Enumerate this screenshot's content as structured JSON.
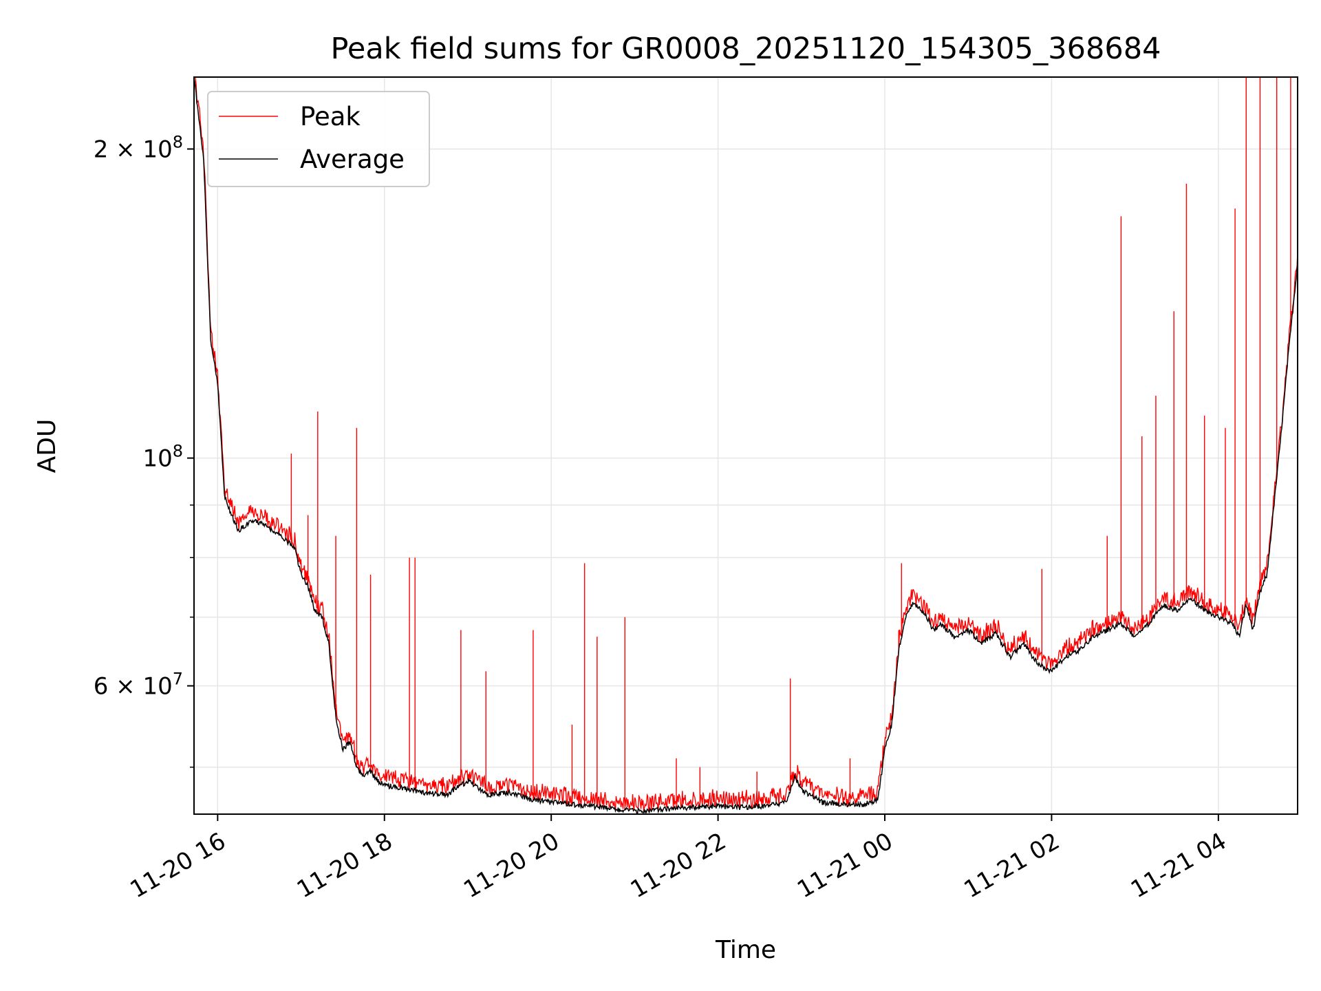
{
  "chart_data": {
    "type": "line",
    "title": "Peak field sums for GR0008_20251120_154305_368684",
    "xlabel": "Time",
    "ylabel": "ADU",
    "yscale": "log",
    "ylim": [
      45000000,
      235000000
    ],
    "xlim": [
      "2025-11-20 15:43",
      "2025-11-21 04:57"
    ],
    "grid": true,
    "legend_position": "top-left",
    "x_ticks": [
      {
        "t": "2025-11-20 16:00",
        "label": "11-20 16"
      },
      {
        "t": "2025-11-20 18:00",
        "label": "11-20 18"
      },
      {
        "t": "2025-11-20 20:00",
        "label": "11-20 20"
      },
      {
        "t": "2025-11-20 22:00",
        "label": "11-20 22"
      },
      {
        "t": "2025-11-21 00:00",
        "label": "11-21 00"
      },
      {
        "t": "2025-11-21 02:00",
        "label": "11-21 02"
      },
      {
        "t": "2025-11-21 04:00",
        "label": "11-21 04"
      }
    ],
    "y_major_ticks": [
      {
        "v": 200000000,
        "base": "2 × 10",
        "exp": "8"
      },
      {
        "v": 100000000,
        "base": "10",
        "exp": "8"
      },
      {
        "v": 60000000,
        "base": "6 × 10",
        "exp": "7"
      }
    ],
    "y_minor_ticks": [
      50000000,
      70000000,
      80000000,
      90000000
    ],
    "series": [
      {
        "name": "Average",
        "color": "#000000",
        "x": [
          "2025-11-20 15:43",
          "2025-11-20 15:50",
          "2025-11-20 15:55",
          "2025-11-20 16:00",
          "2025-11-20 16:05",
          "2025-11-20 16:10",
          "2025-11-20 16:15",
          "2025-11-20 16:25",
          "2025-11-20 16:35",
          "2025-11-20 16:45",
          "2025-11-20 16:55",
          "2025-11-20 17:00",
          "2025-11-20 17:05",
          "2025-11-20 17:10",
          "2025-11-20 17:15",
          "2025-11-20 17:20",
          "2025-11-20 17:25",
          "2025-11-20 17:30",
          "2025-11-20 17:35",
          "2025-11-20 17:40",
          "2025-11-20 17:45",
          "2025-11-20 17:50",
          "2025-11-20 17:55",
          "2025-11-20 18:00",
          "2025-11-20 18:10",
          "2025-11-20 18:20",
          "2025-11-20 18:30",
          "2025-11-20 18:45",
          "2025-11-20 19:00",
          "2025-11-20 19:15",
          "2025-11-20 19:30",
          "2025-11-20 19:45",
          "2025-11-20 20:00",
          "2025-11-20 20:15",
          "2025-11-20 20:30",
          "2025-11-20 20:45",
          "2025-11-20 21:00",
          "2025-11-20 21:15",
          "2025-11-20 21:30",
          "2025-11-20 21:45",
          "2025-11-20 22:00",
          "2025-11-20 22:15",
          "2025-11-20 22:30",
          "2025-11-20 22:45",
          "2025-11-20 22:50",
          "2025-11-20 22:55",
          "2025-11-20 23:00",
          "2025-11-20 23:15",
          "2025-11-20 23:30",
          "2025-11-20 23:45",
          "2025-11-20 23:50",
          "2025-11-20 23:55",
          "2025-11-21 00:00",
          "2025-11-21 00:05",
          "2025-11-21 00:10",
          "2025-11-21 00:15",
          "2025-11-21 00:20",
          "2025-11-21 00:25",
          "2025-11-21 00:30",
          "2025-11-21 00:35",
          "2025-11-21 00:40",
          "2025-11-21 00:50",
          "2025-11-21 01:00",
          "2025-11-21 01:10",
          "2025-11-21 01:20",
          "2025-11-21 01:30",
          "2025-11-21 01:40",
          "2025-11-21 01:50",
          "2025-11-21 02:00",
          "2025-11-21 02:10",
          "2025-11-21 02:20",
          "2025-11-21 02:30",
          "2025-11-21 02:40",
          "2025-11-21 02:50",
          "2025-11-21 03:00",
          "2025-11-21 03:10",
          "2025-11-21 03:20",
          "2025-11-21 03:30",
          "2025-11-21 03:40",
          "2025-11-21 03:50",
          "2025-11-21 04:00",
          "2025-11-21 04:10",
          "2025-11-21 04:15",
          "2025-11-21 04:20",
          "2025-11-21 04:25",
          "2025-11-21 04:30",
          "2025-11-21 04:35",
          "2025-11-21 04:40",
          "2025-11-21 04:45",
          "2025-11-21 04:50",
          "2025-11-21 04:57"
        ],
        "values": [
          235000000,
          195000000,
          130000000,
          118000000,
          92000000,
          88000000,
          85000000,
          87000000,
          86000000,
          84000000,
          82000000,
          77000000,
          75000000,
          71000000,
          70000000,
          66000000,
          56000000,
          52000000,
          53000000,
          50000000,
          49000000,
          49500000,
          48500000,
          48000000,
          47800000,
          47500000,
          47200000,
          47000000,
          48500000,
          47000000,
          47200000,
          46500000,
          46200000,
          46000000,
          45800000,
          45500000,
          45300000,
          45400000,
          45600000,
          45700000,
          45800000,
          45700000,
          45800000,
          46000000,
          46500000,
          49000000,
          47500000,
          46200000,
          46000000,
          46000000,
          46200000,
          46500000,
          52000000,
          55000000,
          65000000,
          70000000,
          72000000,
          71500000,
          70000000,
          68000000,
          69000000,
          67000000,
          68000000,
          66000000,
          67500000,
          64000000,
          66000000,
          63000000,
          62000000,
          64000000,
          65000000,
          67000000,
          68000000,
          69000000,
          67000000,
          69000000,
          72000000,
          71000000,
          73000000,
          71000000,
          70000000,
          69000000,
          67000000,
          72000000,
          68000000,
          74000000,
          77000000,
          90000000,
          105000000,
          125000000,
          155000000
        ]
      },
      {
        "name": "Peak",
        "color": "#ff0000",
        "spikes": [
          {
            "t": "2025-11-20 16:53",
            "v": 101000000
          },
          {
            "t": "2025-11-20 17:12",
            "v": 111000000
          },
          {
            "t": "2025-11-20 17:05",
            "v": 88000000
          },
          {
            "t": "2025-11-20 17:25",
            "v": 84000000
          },
          {
            "t": "2025-11-20 17:40",
            "v": 107000000
          },
          {
            "t": "2025-11-20 17:50",
            "v": 77000000
          },
          {
            "t": "2025-11-20 18:18",
            "v": 80000000
          },
          {
            "t": "2025-11-20 18:22",
            "v": 80000000
          },
          {
            "t": "2025-11-20 18:55",
            "v": 68000000
          },
          {
            "t": "2025-11-20 19:13",
            "v": 62000000
          },
          {
            "t": "2025-11-20 19:47",
            "v": 68000000
          },
          {
            "t": "2025-11-20 20:15",
            "v": 55000000
          },
          {
            "t": "2025-11-20 20:24",
            "v": 79000000
          },
          {
            "t": "2025-11-20 20:33",
            "v": 67000000
          },
          {
            "t": "2025-11-20 20:53",
            "v": 70000000
          },
          {
            "t": "2025-11-20 21:30",
            "v": 51000000
          },
          {
            "t": "2025-11-20 21:47",
            "v": 50000000
          },
          {
            "t": "2025-11-20 22:28",
            "v": 49500000
          },
          {
            "t": "2025-11-20 22:52",
            "v": 61000000
          },
          {
            "t": "2025-11-20 23:35",
            "v": 51000000
          },
          {
            "t": "2025-11-21 00:10",
            "v": 68000000
          },
          {
            "t": "2025-11-21 00:12",
            "v": 79000000
          },
          {
            "t": "2025-11-21 01:53",
            "v": 78000000
          },
          {
            "t": "2025-11-21 02:40",
            "v": 84000000
          },
          {
            "t": "2025-11-21 02:50",
            "v": 172000000
          },
          {
            "t": "2025-11-21 03:05",
            "v": 105000000
          },
          {
            "t": "2025-11-21 03:15",
            "v": 115000000
          },
          {
            "t": "2025-11-21 03:28",
            "v": 139000000
          },
          {
            "t": "2025-11-21 03:37",
            "v": 185000000
          },
          {
            "t": "2025-11-21 03:50",
            "v": 110000000
          },
          {
            "t": "2025-11-21 04:05",
            "v": 107000000
          },
          {
            "t": "2025-11-21 04:12",
            "v": 175000000
          },
          {
            "t": "2025-11-21 04:20",
            "v": 235000000
          },
          {
            "t": "2025-11-21 04:30",
            "v": 235000000
          },
          {
            "t": "2025-11-21 04:42",
            "v": 235000000
          },
          {
            "t": "2025-11-21 04:52",
            "v": 235000000
          }
        ]
      }
    ]
  }
}
